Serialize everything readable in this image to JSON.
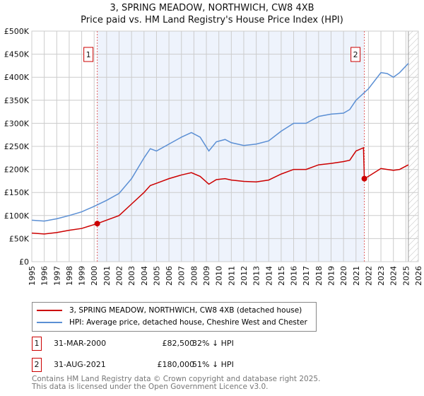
{
  "title_line1": "3, SPRING MEADOW, NORTHWICH, CW8 4XB",
  "title_line2": "Price paid vs. HM Land Registry's House Price Index (HPI)",
  "colors": {
    "property": "#cc0000",
    "hpi": "#5b8fd4",
    "shade": "#eef3fc",
    "grid": "#cccccc"
  },
  "chart_data": {
    "type": "line",
    "xlim": [
      1995,
      2026
    ],
    "ylim": [
      0,
      500000
    ],
    "x_ticks": [
      "1995",
      "1996",
      "1997",
      "1998",
      "1999",
      "2000",
      "2001",
      "2002",
      "2003",
      "2004",
      "2005",
      "2006",
      "2007",
      "2008",
      "2009",
      "2010",
      "2011",
      "2012",
      "2013",
      "2014",
      "2015",
      "2016",
      "2017",
      "2018",
      "2019",
      "2020",
      "2021",
      "2022",
      "2023",
      "2024",
      "2025",
      "2026"
    ],
    "y_ticks": [
      {
        "v": 0,
        "label": "£0"
      },
      {
        "v": 50000,
        "label": "£50K"
      },
      {
        "v": 100000,
        "label": "£100K"
      },
      {
        "v": 150000,
        "label": "£150K"
      },
      {
        "v": 200000,
        "label": "£200K"
      },
      {
        "v": 250000,
        "label": "£250K"
      },
      {
        "v": 300000,
        "label": "£300K"
      },
      {
        "v": 350000,
        "label": "£350K"
      },
      {
        "v": 400000,
        "label": "£400K"
      },
      {
        "v": 450000,
        "label": "£450K"
      },
      {
        "v": 500000,
        "label": "£500K"
      }
    ],
    "grid": true,
    "shaded_range": [
      2000.25,
      2021.67
    ],
    "forecast_from": 2025.2,
    "series": [
      {
        "name": "3, SPRING MEADOW, NORTHWICH, CW8 4XB (detached house)",
        "color": "#cc0000",
        "x": [
          1995,
          1996,
          1997,
          1998,
          1999,
          2000.25,
          2001,
          2002,
          2003,
          2004,
          2004.5,
          2005,
          2006,
          2007,
          2007.8,
          2008.5,
          2009.2,
          2009.8,
          2010.5,
          2011,
          2012,
          2013,
          2014,
          2015,
          2016,
          2017,
          2018,
          2019,
          2020,
          2020.5,
          2021,
          2021.6,
          2021.67,
          2022,
          2023,
          2023.5,
          2024,
          2024.5,
          2025.2
        ],
        "y": [
          62000,
          60000,
          63000,
          68000,
          72000,
          82500,
          90000,
          100000,
          125000,
          150000,
          165000,
          170000,
          180000,
          188000,
          193000,
          185000,
          168000,
          178000,
          180000,
          177000,
          174000,
          173000,
          177000,
          190000,
          200000,
          200000,
          210000,
          213000,
          217000,
          220000,
          240000,
          247000,
          180000,
          185000,
          202000,
          200000,
          198000,
          200000,
          210000
        ]
      },
      {
        "name": "HPI: Average price, detached house, Cheshire West and Chester",
        "color": "#5b8fd4",
        "x": [
          1995,
          1996,
          1997,
          1998,
          1999,
          2000,
          2001,
          2002,
          2003,
          2004,
          2004.5,
          2005,
          2006,
          2007,
          2007.8,
          2008.5,
          2009.2,
          2009.8,
          2010.5,
          2011,
          2012,
          2013,
          2014,
          2015,
          2016,
          2017,
          2018,
          2019,
          2020,
          2020.5,
          2021,
          2022,
          2023,
          2023.5,
          2024,
          2024.5,
          2025.2
        ],
        "y": [
          90000,
          88000,
          93000,
          100000,
          108000,
          120000,
          133000,
          148000,
          180000,
          225000,
          245000,
          240000,
          255000,
          270000,
          280000,
          270000,
          240000,
          260000,
          265000,
          258000,
          252000,
          255000,
          262000,
          283000,
          300000,
          300000,
          315000,
          320000,
          322000,
          330000,
          350000,
          375000,
          410000,
          408000,
          400000,
          410000,
          430000
        ]
      }
    ],
    "markers": [
      {
        "label": "1",
        "x": 2000.25,
        "y": 82500
      },
      {
        "label": "2",
        "x": 2021.67,
        "y": 180000
      }
    ]
  },
  "legend": {
    "property": "3, SPRING MEADOW, NORTHWICH, CW8 4XB (detached house)",
    "hpi": "HPI: Average price, detached house, Cheshire West and Chester"
  },
  "transactions": [
    {
      "num": "1",
      "date": "31-MAR-2000",
      "price": "£82,500",
      "delta": "32% ↓ HPI"
    },
    {
      "num": "2",
      "date": "31-AUG-2021",
      "price": "£180,000",
      "delta": "51% ↓ HPI"
    }
  ],
  "footer": {
    "line1": "Contains HM Land Registry data © Crown copyright and database right 2025.",
    "line2": "This data is licensed under the Open Government Licence v3.0."
  }
}
